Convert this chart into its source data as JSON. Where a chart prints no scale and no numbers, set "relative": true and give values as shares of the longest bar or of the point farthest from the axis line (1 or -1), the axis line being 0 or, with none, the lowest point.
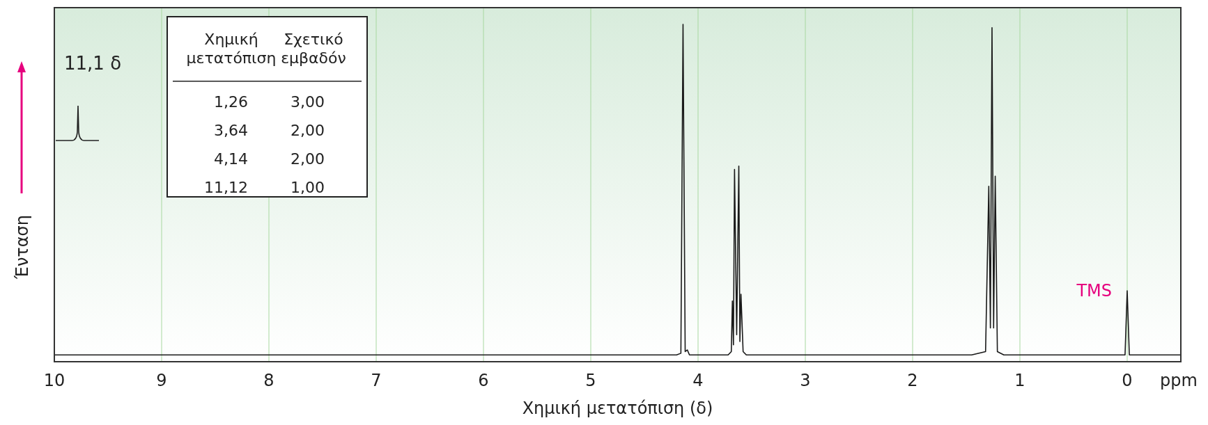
{
  "chart_data": {
    "type": "line",
    "relative": true,
    "xlabel": "Χημική μετατόπιση (δ)",
    "ylabel": "Ένταση",
    "xlim": [
      10,
      -0.5
    ],
    "xticks": [
      10,
      9,
      8,
      7,
      6,
      5,
      4,
      3,
      2,
      1,
      0
    ],
    "grid": "x",
    "x": [
      10,
      9.35,
      6,
      4.2,
      4.16,
      4.14,
      4.12,
      4.1,
      4.08,
      3.72,
      3.69,
      3.68,
      3.67,
      3.66,
      3.64,
      3.62,
      3.61,
      3.6,
      3.58,
      3.55,
      1.45,
      1.32,
      1.29,
      1.275,
      1.26,
      1.245,
      1.23,
      1.21,
      1.15,
      0.02,
      0,
      -0.02,
      -0.5
    ],
    "series": [
      {
        "color": "#1a1a1a",
        "values": [
          0.02,
          0.02,
          0.02,
          0.02,
          0.025,
          1.0,
          0.03,
          0.035,
          0.02,
          0.02,
          0.03,
          0.18,
          0.05,
          0.57,
          0.08,
          0.58,
          0.06,
          0.2,
          0.03,
          0.02,
          0.02,
          0.03,
          0.52,
          0.1,
          0.99,
          0.1,
          0.55,
          0.03,
          0.02,
          0.02,
          0.21,
          0.02,
          0.02
        ]
      }
    ],
    "annotations": [
      "11,1 δ",
      "ppm",
      {
        "text": "TMS",
        "x": 0,
        "y": 0.21
      },
      "Χημική μετατόπιση",
      "Σχετικό εμβαδόν",
      "1,26",
      "3,00",
      "3,64",
      "2,00",
      "4,14",
      "2,00",
      "11,12",
      "1,00"
    ]
  }
}
